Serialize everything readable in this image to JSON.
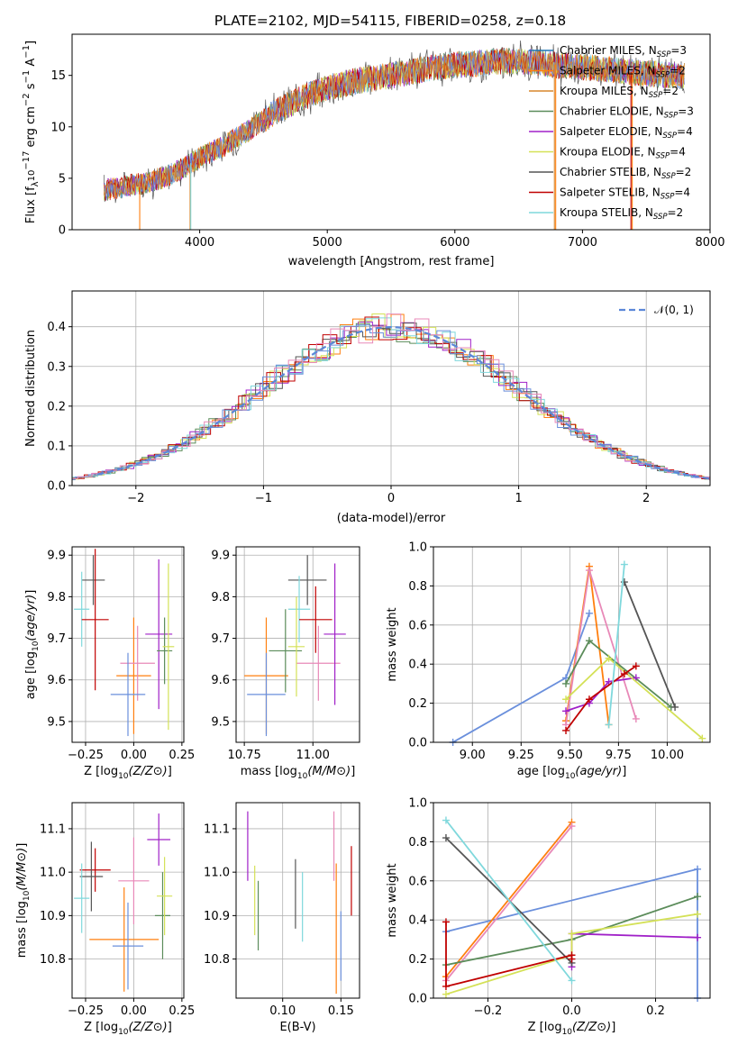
{
  "figure": {
    "title": "PLATE=2102, MJD=54115, FIBERID=0258, z=0.18"
  },
  "colors": {
    "Chabrier MILES": "#1f77b4",
    "Salpeter MILES": "#ff7f0e",
    "Kroupa MILES": "#d7852c",
    "Chabrier ELODIE": "#5b8c5a",
    "Salpeter ELODIE": "#a020c8",
    "Kroupa ELODIE": "#d4e157",
    "Chabrier STELIB": "#555555",
    "Salpeter STELIB": "#c00000",
    "Kroupa STELIB": "#7fd8dc",
    "Chabrier MILES 2": "#6a8fdc",
    "Kroupa MILES 2": "#e889b8"
  },
  "chart_data": [
    {
      "type": "line",
      "title": "PLATE=2102, MJD=54115, FIBERID=0258, z=0.18",
      "xlabel": "wavelength [Angstrom, rest frame]",
      "ylabel": "Flux [f_λ 10^-17 erg cm^-2 s^-1 A^-1]",
      "xlim": [
        3000,
        8000
      ],
      "ylim": [
        0,
        19
      ],
      "xticks": [
        4000,
        5000,
        6000,
        7000,
        8000
      ],
      "yticks": [
        0,
        5,
        10,
        15
      ],
      "legend_position": "top-right",
      "legend": [
        {
          "base": "Chabrier MILES, N",
          "sub": "SSP",
          "tail": "=3"
        },
        {
          "base": "Salpeter MILES, N",
          "sub": "SSP",
          "tail": "=2"
        },
        {
          "base": "Kroupa MILES, N",
          "sub": "SSP",
          "tail": "=2"
        },
        {
          "base": "Chabrier ELODIE, N",
          "sub": "SSP",
          "tail": "=3"
        },
        {
          "base": "Salpeter ELODIE, N",
          "sub": "SSP",
          "tail": "=4"
        },
        {
          "base": "Kroupa ELODIE, N",
          "sub": "SSP",
          "tail": "=4"
        },
        {
          "base": "Chabrier STELIB, N",
          "sub": "SSP",
          "tail": "=2"
        },
        {
          "base": "Salpeter STELIB, N",
          "sub": "SSP",
          "tail": "=4"
        },
        {
          "base": "Kroupa STELIB, N",
          "sub": "SSP",
          "tail": "=2"
        }
      ],
      "x": [
        3250,
        3400,
        3600,
        3800,
        4000,
        4200,
        4400,
        4600,
        4800,
        5000,
        5200,
        5400,
        5600,
        5800,
        6000,
        6200,
        6400,
        6600,
        6800,
        7000,
        7200,
        7400,
        7600,
        7800
      ],
      "y": [
        3.8,
        4.2,
        4.6,
        5.5,
        7.0,
        8.2,
        9.8,
        11.5,
        12.8,
        13.8,
        14.4,
        14.8,
        15.2,
        15.7,
        16.0,
        16.2,
        16.4,
        16.3,
        16.0,
        15.8,
        15.6,
        15.3,
        15.1,
        14.9
      ]
    },
    {
      "type": "line",
      "xlabel": "(data-model)/error",
      "ylabel": "Normed distribution",
      "xlim": [
        -2.5,
        2.5
      ],
      "ylim": [
        0,
        0.49
      ],
      "xticks": [
        -2,
        -1,
        0,
        1,
        2
      ],
      "yticks": [
        0.0,
        0.1,
        0.2,
        0.3,
        0.4
      ],
      "legend_position": "top-right",
      "legend": [
        "𝒩(0, 1)"
      ],
      "gaussian": {
        "mean": 0,
        "sigma": 1
      }
    },
    {
      "type": "scatter",
      "xlabel": "Z [log10(Z/Z⊙)]",
      "ylabel": "age [log10(age/yr)]",
      "xlim": [
        -0.32,
        0.26
      ],
      "ylim": [
        9.45,
        9.92
      ],
      "xticks": [
        -0.25,
        0.0,
        0.25
      ],
      "yticks": [
        9.5,
        9.6,
        9.7,
        9.8,
        9.9
      ],
      "points": [
        {
          "x": -0.21,
          "y": 9.84,
          "xerr": 0.06,
          "yerr": 0.06,
          "c": "#555555"
        },
        {
          "x": -0.27,
          "y": 9.77,
          "xerr": 0.04,
          "yerr": 0.09,
          "c": "#7fd8dc"
        },
        {
          "x": -0.2,
          "y": 9.745,
          "xerr": 0.07,
          "yerr": 0.17,
          "c": "#c00000"
        },
        {
          "x": 0.0,
          "y": 9.61,
          "xerr": 0.09,
          "yerr": 0.14,
          "c": "#ff7f0e"
        },
        {
          "x": 0.02,
          "y": 9.64,
          "xerr": 0.09,
          "yerr": 0.09,
          "c": "#e889b8"
        },
        {
          "x": -0.03,
          "y": 9.565,
          "xerr": 0.09,
          "yerr": 0.1,
          "c": "#6a8fdc"
        },
        {
          "x": 0.13,
          "y": 9.71,
          "xerr": 0.07,
          "yerr": 0.18,
          "c": "#a020c8"
        },
        {
          "x": 0.16,
          "y": 9.67,
          "xerr": 0.04,
          "yerr": 0.08,
          "c": "#5b8c5a"
        },
        {
          "x": 0.18,
          "y": 9.68,
          "xerr": 0.03,
          "yerr": 0.2,
          "c": "#d4e157"
        }
      ]
    },
    {
      "type": "scatter",
      "xlabel": "mass [log10(M/M⊙)]",
      "ylabel": "",
      "xlim": [
        10.72,
        11.17
      ],
      "ylim": [
        9.45,
        9.92
      ],
      "xticks": [
        10.75,
        11.0
      ],
      "yticks": [
        9.5,
        9.6,
        9.7,
        9.8,
        9.9
      ],
      "points": [
        {
          "x": 10.98,
          "y": 9.84,
          "xerr": 0.07,
          "yerr": 0.06,
          "c": "#555555"
        },
        {
          "x": 10.95,
          "y": 9.77,
          "xerr": 0.04,
          "yerr": 0.08,
          "c": "#7fd8dc"
        },
        {
          "x": 11.01,
          "y": 9.745,
          "xerr": 0.06,
          "yerr": 0.08,
          "c": "#c00000"
        },
        {
          "x": 10.83,
          "y": 9.61,
          "xerr": 0.08,
          "yerr": 0.14,
          "c": "#ff7f0e"
        },
        {
          "x": 11.02,
          "y": 9.64,
          "xerr": 0.08,
          "yerr": 0.09,
          "c": "#e889b8"
        },
        {
          "x": 10.83,
          "y": 9.565,
          "xerr": 0.07,
          "yerr": 0.1,
          "c": "#6a8fdc"
        },
        {
          "x": 11.08,
          "y": 9.71,
          "xerr": 0.04,
          "yerr": 0.17,
          "c": "#a020c8"
        },
        {
          "x": 10.9,
          "y": 9.67,
          "xerr": 0.06,
          "yerr": 0.1,
          "c": "#5b8c5a"
        },
        {
          "x": 10.94,
          "y": 9.68,
          "xerr": 0.03,
          "yerr": 0.12,
          "c": "#d4e157"
        }
      ]
    },
    {
      "type": "line",
      "xlabel": "age [log10(age/yr)]",
      "ylabel": "mass weight",
      "xlim": [
        8.8,
        10.22
      ],
      "ylim": [
        0,
        1.0
      ],
      "xticks": [
        9.0,
        9.25,
        9.5,
        9.75,
        10.0
      ],
      "yticks": [
        0.0,
        0.2,
        0.4,
        0.6,
        0.8,
        1.0
      ],
      "series": [
        {
          "c": "#6a8fdc",
          "x": [
            8.9,
            9.48,
            9.6
          ],
          "y": [
            0.0,
            0.33,
            0.66
          ]
        },
        {
          "c": "#ff7f0e",
          "x": [
            9.48,
            9.6,
            9.7
          ],
          "y": [
            0.11,
            0.9,
            0.09
          ]
        },
        {
          "c": "#e889b8",
          "x": [
            9.48,
            9.6,
            9.84
          ],
          "y": [
            0.09,
            0.88,
            0.12
          ]
        },
        {
          "c": "#5b8c5a",
          "x": [
            9.48,
            9.6,
            10.02
          ],
          "y": [
            0.3,
            0.52,
            0.18
          ]
        },
        {
          "c": "#a020c8",
          "x": [
            9.48,
            9.6,
            9.7,
            9.84
          ],
          "y": [
            0.16,
            0.2,
            0.31,
            0.33
          ]
        },
        {
          "c": "#d4e157",
          "x": [
            9.48,
            9.7,
            10.18
          ],
          "y": [
            0.22,
            0.43,
            0.02
          ]
        },
        {
          "c": "#555555",
          "x": [
            9.78,
            10.04
          ],
          "y": [
            0.82,
            0.18
          ]
        },
        {
          "c": "#c00000",
          "x": [
            9.48,
            9.6,
            9.78,
            9.84
          ],
          "y": [
            0.06,
            0.22,
            0.35,
            0.39
          ]
        },
        {
          "c": "#7fd8dc",
          "x": [
            9.7,
            9.78
          ],
          "y": [
            0.09,
            0.91
          ]
        }
      ]
    },
    {
      "type": "scatter",
      "xlabel": "Z [log10(Z/Z⊙)]",
      "ylabel": "mass [log10(M/M⊙)]",
      "xlim": [
        -0.32,
        0.26
      ],
      "ylim": [
        10.71,
        11.16
      ],
      "xticks": [
        -0.25,
        0.0,
        0.25
      ],
      "yticks": [
        10.8,
        10.9,
        11.0,
        11.1
      ],
      "points": [
        {
          "x": -0.2,
          "y": 11.005,
          "xerr": 0.08,
          "yerr": 0.05,
          "c": "#c00000"
        },
        {
          "x": -0.22,
          "y": 10.99,
          "xerr": 0.06,
          "yerr": 0.08,
          "c": "#555555"
        },
        {
          "x": -0.27,
          "y": 10.94,
          "xerr": 0.04,
          "yerr": 0.08,
          "c": "#7fd8dc"
        },
        {
          "x": 0.0,
          "y": 10.98,
          "xerr": 0.08,
          "yerr": 0.1,
          "c": "#e889b8"
        },
        {
          "x": -0.05,
          "y": 10.845,
          "xerr": 0.18,
          "yerr": 0.12,
          "c": "#ff7f0e"
        },
        {
          "x": -0.03,
          "y": 10.83,
          "xerr": 0.08,
          "yerr": 0.1,
          "c": "#6a8fdc"
        },
        {
          "x": 0.13,
          "y": 11.075,
          "xerr": 0.06,
          "yerr": 0.06,
          "c": "#a020c8"
        },
        {
          "x": 0.15,
          "y": 10.9,
          "xerr": 0.04,
          "yerr": 0.1,
          "c": "#5b8c5a"
        },
        {
          "x": 0.16,
          "y": 10.945,
          "xerr": 0.04,
          "yerr": 0.09,
          "c": "#d4e157"
        }
      ]
    },
    {
      "type": "scatter",
      "xlabel": "E(B-V)",
      "ylabel": "",
      "xlim": [
        0.06,
        0.166
      ],
      "ylim": [
        10.71,
        11.16
      ],
      "xticks": [
        0.1,
        0.15
      ],
      "yticks": [
        10.8,
        10.9,
        11.0,
        11.1
      ],
      "points": [
        {
          "x": 0.07,
          "y": 11.06,
          "xerr": 0,
          "yerr": 0.08,
          "c": "#a020c8"
        },
        {
          "x": 0.076,
          "y": 10.935,
          "xerr": 0,
          "yerr": 0.08,
          "c": "#d4e157"
        },
        {
          "x": 0.079,
          "y": 10.9,
          "xerr": 0,
          "yerr": 0.08,
          "c": "#5b8c5a"
        },
        {
          "x": 0.111,
          "y": 10.95,
          "xerr": 0,
          "yerr": 0.08,
          "c": "#555555"
        },
        {
          "x": 0.117,
          "y": 10.92,
          "xerr": 0,
          "yerr": 0.08,
          "c": "#7fd8dc"
        },
        {
          "x": 0.144,
          "y": 11.06,
          "xerr": 0,
          "yerr": 0.08,
          "c": "#e889b8"
        },
        {
          "x": 0.146,
          "y": 10.87,
          "xerr": 0,
          "yerr": 0.15,
          "c": "#ff7f0e"
        },
        {
          "x": 0.15,
          "y": 10.83,
          "xerr": 0,
          "yerr": 0.08,
          "c": "#6a8fdc"
        },
        {
          "x": 0.159,
          "y": 10.98,
          "xerr": 0,
          "yerr": 0.08,
          "c": "#c00000"
        }
      ]
    },
    {
      "type": "line",
      "xlabel": "Z [log10(Z/Z⊙)]",
      "ylabel": "mass weight",
      "xlim": [
        -0.33,
        0.33
      ],
      "ylim": [
        0,
        1.0
      ],
      "xticks": [
        -0.2,
        0.0,
        0.2
      ],
      "yticks": [
        0.0,
        0.2,
        0.4,
        0.6,
        0.8,
        1.0
      ],
      "series": [
        {
          "c": "#6a8fdc",
          "x": [
            -0.3,
            0.3,
            0.3
          ],
          "y": [
            0.34,
            0.66,
            0.0
          ]
        },
        {
          "c": "#ff7f0e",
          "x": [
            -0.3,
            0.0
          ],
          "y": [
            0.11,
            0.9
          ]
        },
        {
          "c": "#e889b8",
          "x": [
            -0.3,
            0.0
          ],
          "y": [
            0.09,
            0.88
          ]
        },
        {
          "c": "#5b8c5a",
          "x": [
            -0.3,
            0.0,
            0.3
          ],
          "y": [
            0.17,
            0.3,
            0.52
          ]
        },
        {
          "c": "#a020c8",
          "x": [
            0.0,
            0.0,
            0.3
          ],
          "y": [
            0.16,
            0.33,
            0.31
          ]
        },
        {
          "c": "#d4e157",
          "x": [
            -0.3,
            0.0,
            0.0,
            0.3
          ],
          "y": [
            0.02,
            0.22,
            0.33,
            0.43
          ]
        },
        {
          "c": "#555555",
          "x": [
            -0.3,
            0.0
          ],
          "y": [
            0.82,
            0.18
          ]
        },
        {
          "c": "#c00000",
          "x": [
            -0.3,
            -0.3,
            0.0,
            0.0
          ],
          "y": [
            0.39,
            0.06,
            0.22,
            0.2
          ]
        },
        {
          "c": "#7fd8dc",
          "x": [
            -0.3,
            0.0
          ],
          "y": [
            0.91,
            0.09
          ]
        }
      ]
    }
  ]
}
